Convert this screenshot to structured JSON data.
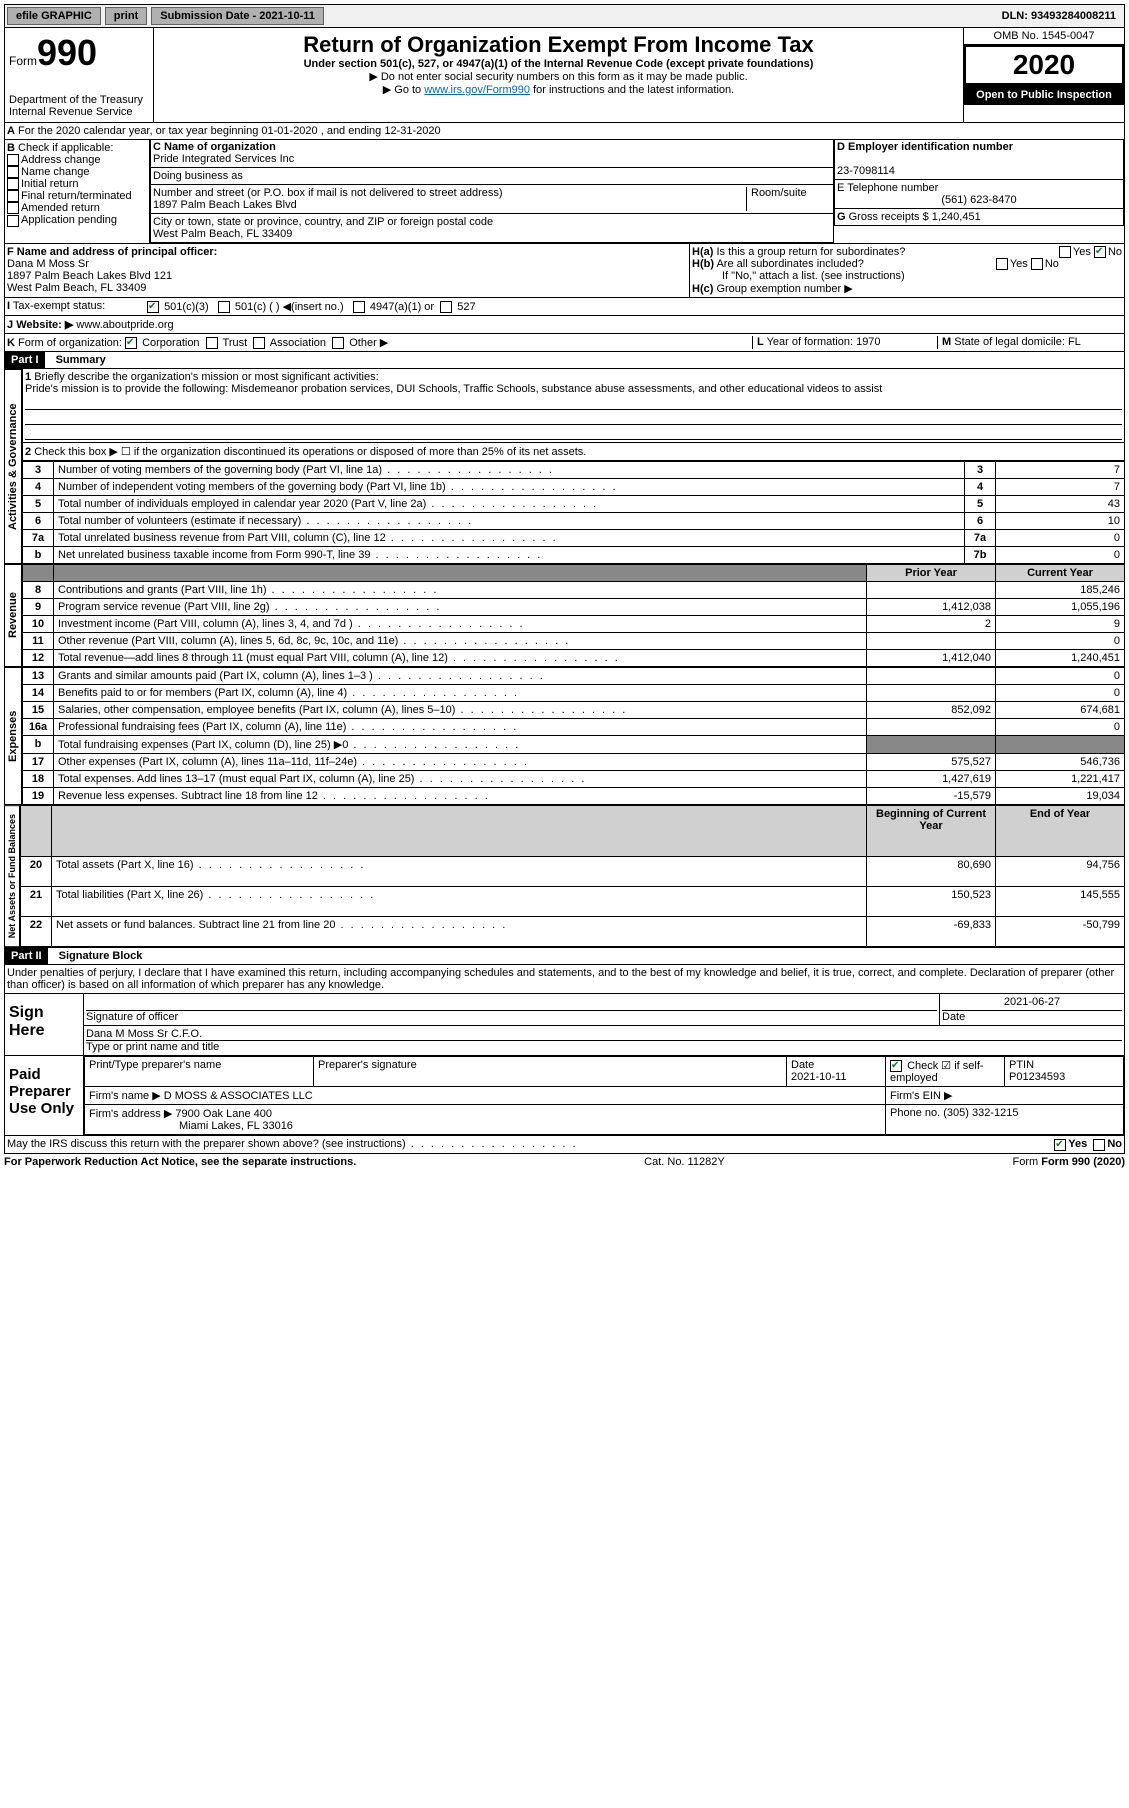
{
  "topbar": {
    "efile": "efile GRAPHIC",
    "print": "print",
    "subdate_label": "Submission Date - 2021-10-11",
    "dln": "DLN: 93493284008211"
  },
  "header": {
    "form_word": "Form",
    "form_num": "990",
    "dept": "Department of the Treasury\nInternal Revenue Service",
    "title": "Return of Organization Exempt From Income Tax",
    "subtitle": "Under section 501(c), 527, or 4947(a)(1) of the Internal Revenue Code (except private foundations)",
    "note1": "Do not enter social security numbers on this form as it may be made public.",
    "note2": "Go to ",
    "note2_link": "www.irs.gov/Form990",
    "note2_after": " for instructions and the latest information.",
    "omb": "OMB No. 1545-0047",
    "year": "2020",
    "open": "Open to Public Inspection"
  },
  "period": {
    "text": "For the 2020 calendar year, or tax year beginning 01-01-2020     , and ending 12-31-2020"
  },
  "boxB": {
    "label": "Check if applicable:",
    "opts": [
      "Address change",
      "Name change",
      "Initial return",
      "Final return/terminated",
      "Amended return",
      "Application pending"
    ]
  },
  "boxC": {
    "label": "C Name of organization",
    "name": "Pride Integrated Services Inc",
    "dba_label": "Doing business as",
    "addr_label": "Number and street (or P.O. box if mail is not delivered to street address)",
    "room": "Room/suite",
    "street": "1897 Palm Beach Lakes Blvd",
    "city_label": "City or town, state or province, country, and ZIP or foreign postal code",
    "city": "West Palm Beach, FL  33409"
  },
  "boxD": {
    "label": "D Employer identification number",
    "ein": "23-7098114"
  },
  "boxE": {
    "label": "E Telephone number",
    "phone": "(561) 623-8470"
  },
  "boxG": {
    "label": "G",
    "text": "Gross receipts $ 1,240,451"
  },
  "boxF": {
    "label": "F  Name and address of principal officer:",
    "name": "Dana M Moss Sr",
    "addr1": "1897 Palm Beach Lakes Blvd 121",
    "addr2": "West Palm Beach, FL  33409"
  },
  "boxH": {
    "a": "Is this a group return for subordinates?",
    "b": "Are all subordinates included?",
    "b_note": "If \"No,\" attach a list. (see instructions)",
    "c": "Group exemption number ▶",
    "yes": "Yes",
    "no": "No"
  },
  "taxexempt": {
    "label": "Tax-exempt status:",
    "opt1": "501(c)(3)",
    "opt2": "501(c) (  )   ◀(insert no.)",
    "opt3": "4947(a)(1) or",
    "opt4": "527"
  },
  "website": {
    "label": "Website: ▶",
    "url": "www.aboutpride.org"
  },
  "boxK": {
    "label": "Form of organization:",
    "opts": [
      "Corporation",
      "Trust",
      "Association",
      "Other ▶"
    ]
  },
  "boxL": {
    "label": "L",
    "text": "Year of formation: 1970"
  },
  "boxM": {
    "label": "M",
    "text": "State of legal domicile: FL"
  },
  "part1": {
    "header": "Part I",
    "title": "Summary",
    "q1": "Briefly describe the organization's mission or most significant activities:",
    "mission": "Pride's mission is to provide the following: Misdemeanor probation services, DUI Schools, Traffic Schools, substance abuse assessments, and other educational videos to assist",
    "q2": "Check this box ▶ ☐ if the organization discontinued its operations or disposed of more than 25% of its net assets.",
    "governance_label": "Activities & Governance",
    "revenue_label": "Revenue",
    "expenses_label": "Expenses",
    "netassets_label": "Net Assets or Fund Balances",
    "col_prior": "Prior Year",
    "col_current": "Current Year",
    "col_begin": "Beginning of Current Year",
    "col_end": "End of Year",
    "rows_gov": [
      {
        "n": "3",
        "t": "Number of voting members of the governing body (Part VI, line 1a)",
        "c": "3",
        "v": "7"
      },
      {
        "n": "4",
        "t": "Number of independent voting members of the governing body (Part VI, line 1b)",
        "c": "4",
        "v": "7"
      },
      {
        "n": "5",
        "t": "Total number of individuals employed in calendar year 2020 (Part V, line 2a)",
        "c": "5",
        "v": "43"
      },
      {
        "n": "6",
        "t": "Total number of volunteers (estimate if necessary)",
        "c": "6",
        "v": "10"
      },
      {
        "n": "7a",
        "t": "Total unrelated business revenue from Part VIII, column (C), line 12",
        "c": "7a",
        "v": "0"
      },
      {
        "n": "b",
        "t": "Net unrelated business taxable income from Form 990-T, line 39",
        "c": "7b",
        "v": "0"
      }
    ],
    "rows_rev": [
      {
        "n": "8",
        "t": "Contributions and grants (Part VIII, line 1h)",
        "p": "",
        "c": "185,246"
      },
      {
        "n": "9",
        "t": "Program service revenue (Part VIII, line 2g)",
        "p": "1,412,038",
        "c": "1,055,196"
      },
      {
        "n": "10",
        "t": "Investment income (Part VIII, column (A), lines 3, 4, and 7d )",
        "p": "2",
        "c": "9"
      },
      {
        "n": "11",
        "t": "Other revenue (Part VIII, column (A), lines 5, 6d, 8c, 9c, 10c, and 11e)",
        "p": "",
        "c": "0"
      },
      {
        "n": "12",
        "t": "Total revenue—add lines 8 through 11 (must equal Part VIII, column (A), line 12)",
        "p": "1,412,040",
        "c": "1,240,451"
      }
    ],
    "rows_exp": [
      {
        "n": "13",
        "t": "Grants and similar amounts paid (Part IX, column (A), lines 1–3 )",
        "p": "",
        "c": "0"
      },
      {
        "n": "14",
        "t": "Benefits paid to or for members (Part IX, column (A), line 4)",
        "p": "",
        "c": "0"
      },
      {
        "n": "15",
        "t": "Salaries, other compensation, employee benefits (Part IX, column (A), lines 5–10)",
        "p": "852,092",
        "c": "674,681"
      },
      {
        "n": "16a",
        "t": "Professional fundraising fees (Part IX, column (A), line 11e)",
        "p": "",
        "c": "0"
      },
      {
        "n": "b",
        "t": "Total fundraising expenses (Part IX, column (D), line 25) ▶0",
        "p": "GRAY",
        "c": "GRAY"
      },
      {
        "n": "17",
        "t": "Other expenses (Part IX, column (A), lines 11a–11d, 11f–24e)",
        "p": "575,527",
        "c": "546,736"
      },
      {
        "n": "18",
        "t": "Total expenses. Add lines 13–17 (must equal Part IX, column (A), line 25)",
        "p": "1,427,619",
        "c": "1,221,417"
      },
      {
        "n": "19",
        "t": "Revenue less expenses. Subtract line 18 from line 12",
        "p": "-15,579",
        "c": "19,034"
      }
    ],
    "rows_net": [
      {
        "n": "20",
        "t": "Total assets (Part X, line 16)",
        "p": "80,690",
        "c": "94,756"
      },
      {
        "n": "21",
        "t": "Total liabilities (Part X, line 26)",
        "p": "150,523",
        "c": "145,555"
      },
      {
        "n": "22",
        "t": "Net assets or fund balances. Subtract line 21 from line 20",
        "p": "-69,833",
        "c": "-50,799"
      }
    ]
  },
  "part2": {
    "header": "Part II",
    "title": "Signature Block",
    "penalty": "Under penalties of perjury, I declare that I have examined this return, including accompanying schedules and statements, and to the best of my knowledge and belief, it is true, correct, and complete. Declaration of preparer (other than officer) is based on all information of which preparer has any knowledge.",
    "sign_here": "Sign Here",
    "sig_officer": "Signature of officer",
    "sig_date": "2021-06-27",
    "date_label": "Date",
    "officer_name": "Dana M Moss Sr C.F.O.",
    "officer_title": "Type or print name and title",
    "paid": "Paid Preparer Use Only",
    "prep_name_label": "Print/Type preparer's name",
    "prep_sig_label": "Preparer's signature",
    "prep_date": "2021-10-11",
    "check_self": "Check ☑ if self-employed",
    "ptin_label": "PTIN",
    "ptin": "P01234593",
    "firm_name_label": "Firm's name     ▶",
    "firm_name": "D MOSS & ASSOCIATES LLC",
    "firm_ein_label": "Firm's EIN ▶",
    "firm_addr_label": "Firm's address ▶",
    "firm_addr1": "7900 Oak Lane 400",
    "firm_addr2": "Miami Lakes, FL  33016",
    "firm_phone_label": "Phone no.",
    "firm_phone": "(305) 332-1215",
    "discuss": "May the IRS discuss this return with the preparer shown above? (see instructions)"
  },
  "footer": {
    "paperwork": "For Paperwork Reduction Act Notice, see the separate instructions.",
    "cat": "Cat. No. 11282Y",
    "form": "Form 990 (2020)"
  }
}
